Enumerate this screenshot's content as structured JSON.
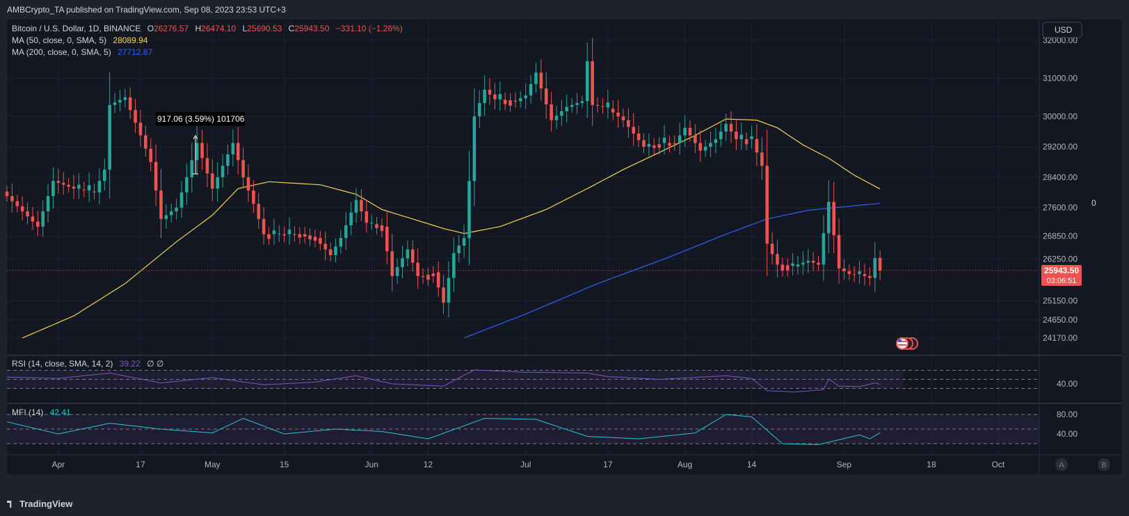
{
  "header": {
    "published": "AMBCrypto_TA published on TradingView.com, Sep 08, 2023 23:53 UTC+3"
  },
  "legend": {
    "symbol": "Bitcoin / U.S. Dollar, 1D, BINANCE",
    "o_label": "O",
    "o": "26276.57",
    "h_label": "H",
    "h": "26474.10",
    "l_label": "L",
    "l": "25690.53",
    "c_label": "C",
    "c": "25943.50",
    "change": "−331.10 (−1.26%)",
    "ma50_label": "MA (50, close, 0, SMA, 5)",
    "ma50_value": "28089.94",
    "ma200_label": "MA (200, close, 0, SMA, 5)",
    "ma200_value": "27712.87"
  },
  "currency_button": "USD",
  "price_label": {
    "value": "25943.50",
    "countdown": "03:06:51"
  },
  "side_zero": "0",
  "measure_label": "917.06 (3.59%) 101706",
  "rsi_legend": {
    "label": "RSI (14, close, SMA, 14, 2)",
    "value": "39.22",
    "extra": "∅ ∅"
  },
  "mfi_legend": {
    "label": "MFI (14)",
    "value": "42.41"
  },
  "pane_buttons": [
    "A",
    "B"
  ],
  "footer": {
    "brand": "TradingView"
  },
  "colors": {
    "up": "#26a69a",
    "down": "#ef5350",
    "ma50": "#f5d44b",
    "ma200": "#2962ff",
    "rsi": "#7e57c2",
    "mfi": "#26c6da",
    "bg": "#131722"
  },
  "chart_data": {
    "type": "candlestick",
    "title": "Bitcoin / U.S. Dollar, 1D, BINANCE",
    "y_ticks": [
      32000,
      31000,
      30000,
      29200,
      28400,
      27600,
      26850,
      26250,
      25150,
      24650,
      24170
    ],
    "y_tick_labels": [
      "32000.00",
      "31000.00",
      "30000.00",
      "29200.00",
      "28400.00",
      "27600.00",
      "26850.00",
      "26250.00",
      "25150.00",
      "24650.00",
      "24170.00"
    ],
    "ylim": [
      24170,
      32000
    ],
    "x_start": "2023-03-22",
    "x_end": "2023-10-09",
    "x_ticks": [
      {
        "label": "Apr",
        "date": "2023-04-01"
      },
      {
        "label": "17",
        "date": "2023-04-17"
      },
      {
        "label": "May",
        "date": "2023-05-01"
      },
      {
        "label": "15",
        "date": "2023-05-15"
      },
      {
        "label": "Jun",
        "date": "2023-06-01"
      },
      {
        "label": "12",
        "date": "2023-06-12"
      },
      {
        "label": "Jul",
        "date": "2023-07-01"
      },
      {
        "label": "17",
        "date": "2023-07-17"
      },
      {
        "label": "Aug",
        "date": "2023-08-01"
      },
      {
        "label": "14",
        "date": "2023-08-14"
      },
      {
        "label": "Sep",
        "date": "2023-09-01"
      },
      {
        "label": "18",
        "date": "2023-09-18"
      },
      {
        "label": "Oct",
        "date": "2023-10-01"
      }
    ],
    "close_keypoints": [
      [
        "2023-03-22",
        27900
      ],
      [
        "2023-03-25",
        27500
      ],
      [
        "2023-03-28",
        27100
      ],
      [
        "2023-03-31",
        28300
      ],
      [
        "2023-04-04",
        28100
      ],
      [
        "2023-04-08",
        28000
      ],
      [
        "2023-04-10",
        28600
      ],
      [
        "2023-04-11",
        30300
      ],
      [
        "2023-04-14",
        30500
      ],
      [
        "2023-04-17",
        29500
      ],
      [
        "2023-04-19",
        28800
      ],
      [
        "2023-04-21",
        27300
      ],
      [
        "2023-04-24",
        27600
      ],
      [
        "2023-04-26",
        28400
      ],
      [
        "2023-04-28",
        29300
      ],
      [
        "2023-05-01",
        28100
      ],
      [
        "2023-05-03",
        28700
      ],
      [
        "2023-05-05",
        29300
      ],
      [
        "2023-05-07",
        28400
      ],
      [
        "2023-05-09",
        27700
      ],
      [
        "2023-05-11",
        26900
      ],
      [
        "2023-05-14",
        26900
      ],
      [
        "2023-05-18",
        26900
      ],
      [
        "2023-05-21",
        26800
      ],
      [
        "2023-05-24",
        26350
      ],
      [
        "2023-05-26",
        26800
      ],
      [
        "2023-05-29",
        27800
      ],
      [
        "2023-05-31",
        27200
      ],
      [
        "2023-06-03",
        27100
      ],
      [
        "2023-06-05",
        25800
      ],
      [
        "2023-06-08",
        26500
      ],
      [
        "2023-06-10",
        25800
      ],
      [
        "2023-06-13",
        25900
      ],
      [
        "2023-06-15",
        25100
      ],
      [
        "2023-06-17",
        26400
      ],
      [
        "2023-06-19",
        26800
      ],
      [
        "2023-06-20",
        28300
      ],
      [
        "2023-06-21",
        30000
      ],
      [
        "2023-06-23",
        30700
      ],
      [
        "2023-06-25",
        30450
      ],
      [
        "2023-06-29",
        30400
      ],
      [
        "2023-07-01",
        30550
      ],
      [
        "2023-07-03",
        31150
      ],
      [
        "2023-07-06",
        29900
      ],
      [
        "2023-07-09",
        30250
      ],
      [
        "2023-07-12",
        30400
      ],
      [
        "2023-07-13",
        31450
      ],
      [
        "2023-07-14",
        30300
      ],
      [
        "2023-07-17",
        30200
      ],
      [
        "2023-07-20",
        29900
      ],
      [
        "2023-07-24",
        29200
      ],
      [
        "2023-07-27",
        29300
      ],
      [
        "2023-07-30",
        29300
      ],
      [
        "2023-08-01",
        29700
      ],
      [
        "2023-08-04",
        29100
      ],
      [
        "2023-08-07",
        29400
      ],
      [
        "2023-08-09",
        29800
      ],
      [
        "2023-08-11",
        29400
      ],
      [
        "2023-08-14",
        29400
      ],
      [
        "2023-08-16",
        28700
      ],
      [
        "2023-08-17",
        26650
      ],
      [
        "2023-08-19",
        26100
      ],
      [
        "2023-08-22",
        26050
      ],
      [
        "2023-08-25",
        26200
      ],
      [
        "2023-08-27",
        26100
      ],
      [
        "2023-08-29",
        27750
      ],
      [
        "2023-08-31",
        26000
      ],
      [
        "2023-09-02",
        25850
      ],
      [
        "2023-09-04",
        25850
      ],
      [
        "2023-09-06",
        25750
      ],
      [
        "2023-09-07",
        26270
      ],
      [
        "2023-09-08",
        25943.5
      ]
    ],
    "last_candle": {
      "date": "2023-09-08",
      "open": 26276.57,
      "high": 26474.1,
      "low": 25690.53,
      "close": 25943.5
    },
    "ma50_keypoints": [
      [
        "2023-03-25",
        24170
      ],
      [
        "2023-04-04",
        24750
      ],
      [
        "2023-04-14",
        25600
      ],
      [
        "2023-04-24",
        26700
      ],
      [
        "2023-05-01",
        27400
      ],
      [
        "2023-05-06",
        28100
      ],
      [
        "2023-05-12",
        28280
      ],
      [
        "2023-05-22",
        28200
      ],
      [
        "2023-05-29",
        27950
      ],
      [
        "2023-06-03",
        27550
      ],
      [
        "2023-06-09",
        27300
      ],
      [
        "2023-06-15",
        27050
      ],
      [
        "2023-06-19",
        26920
      ],
      [
        "2023-06-26",
        27100
      ],
      [
        "2023-07-05",
        27550
      ],
      [
        "2023-07-13",
        28100
      ],
      [
        "2023-07-20",
        28600
      ],
      [
        "2023-07-27",
        29050
      ],
      [
        "2023-08-03",
        29500
      ],
      [
        "2023-08-09",
        29930
      ],
      [
        "2023-08-15",
        29900
      ],
      [
        "2023-08-19",
        29700
      ],
      [
        "2023-08-24",
        29250
      ],
      [
        "2023-08-29",
        28900
      ],
      [
        "2023-09-03",
        28450
      ],
      [
        "2023-09-08",
        28089.94
      ]
    ],
    "ma200_keypoints": [
      [
        "2023-06-19",
        24170
      ],
      [
        "2023-07-01",
        24800
      ],
      [
        "2023-07-15",
        25600
      ],
      [
        "2023-07-29",
        26300
      ],
      [
        "2023-08-09",
        26900
      ],
      [
        "2023-08-17",
        27300
      ],
      [
        "2023-08-25",
        27530
      ],
      [
        "2023-09-08",
        27712.87
      ]
    ],
    "rsi": {
      "levels": [
        70,
        50,
        30
      ],
      "y_tick": 40,
      "y_tick_label": "40.00",
      "value": 39.22,
      "keypoints": [
        [
          "2023-03-22",
          55
        ],
        [
          "2023-04-01",
          52
        ],
        [
          "2023-04-11",
          64
        ],
        [
          "2023-04-21",
          42
        ],
        [
          "2023-05-01",
          54
        ],
        [
          "2023-05-11",
          38
        ],
        [
          "2023-05-21",
          44
        ],
        [
          "2023-05-29",
          58
        ],
        [
          "2023-06-05",
          40
        ],
        [
          "2023-06-15",
          35
        ],
        [
          "2023-06-21",
          71
        ],
        [
          "2023-06-30",
          66
        ],
        [
          "2023-07-13",
          64
        ],
        [
          "2023-07-17",
          56
        ],
        [
          "2023-07-27",
          50
        ],
        [
          "2023-08-09",
          58
        ],
        [
          "2023-08-14",
          52
        ],
        [
          "2023-08-17",
          25
        ],
        [
          "2023-08-22",
          22
        ],
        [
          "2023-08-28",
          27
        ],
        [
          "2023-08-29",
          51
        ],
        [
          "2023-08-31",
          35
        ],
        [
          "2023-09-04",
          34
        ],
        [
          "2023-09-07",
          42
        ],
        [
          "2023-09-08",
          39.22
        ]
      ]
    },
    "mfi": {
      "levels": [
        80,
        50,
        20
      ],
      "y_ticks": [
        80,
        40
      ],
      "y_tick_labels": [
        "80.00",
        "40.00"
      ],
      "value": 42.41,
      "keypoints": [
        [
          "2023-03-22",
          65
        ],
        [
          "2023-04-01",
          40
        ],
        [
          "2023-04-11",
          62
        ],
        [
          "2023-04-21",
          50
        ],
        [
          "2023-05-01",
          42
        ],
        [
          "2023-05-07",
          72
        ],
        [
          "2023-05-15",
          40
        ],
        [
          "2023-05-25",
          50
        ],
        [
          "2023-06-03",
          45
        ],
        [
          "2023-06-12",
          30
        ],
        [
          "2023-06-23",
          72
        ],
        [
          "2023-07-03",
          70
        ],
        [
          "2023-07-13",
          35
        ],
        [
          "2023-07-23",
          30
        ],
        [
          "2023-08-03",
          42
        ],
        [
          "2023-08-09",
          80
        ],
        [
          "2023-08-14",
          75
        ],
        [
          "2023-08-20",
          20
        ],
        [
          "2023-08-27",
          18
        ],
        [
          "2023-09-04",
          38
        ],
        [
          "2023-09-06",
          30
        ],
        [
          "2023-09-08",
          42.41
        ]
      ]
    }
  }
}
